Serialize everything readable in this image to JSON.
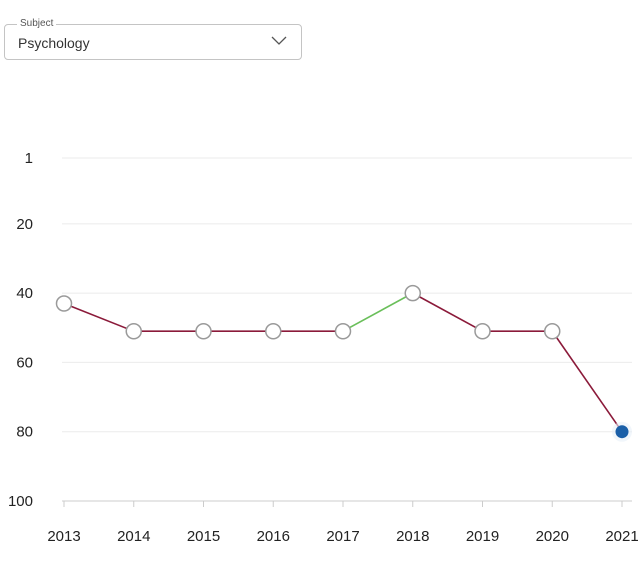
{
  "subject_select": {
    "legend": "Subject",
    "value": "Psychology",
    "icon": "chevron-down-icon"
  },
  "chart_data": {
    "type": "line",
    "title": "",
    "xlabel": "",
    "ylabel": "",
    "x": [
      "2013",
      "2014",
      "2015",
      "2016",
      "2017",
      "2018",
      "2019",
      "2020",
      "2021"
    ],
    "y_ticks": [
      "1",
      "20",
      "40",
      "60",
      "80",
      "100"
    ],
    "y_tick_values": [
      1,
      20,
      40,
      60,
      80,
      100
    ],
    "ylim": [
      1,
      100
    ],
    "y_reversed": true,
    "grid": true,
    "values": [
      43,
      51,
      51,
      51,
      51,
      40,
      51,
      51,
      80
    ],
    "colors": {
      "improve": "#6abf5a",
      "decline": "#8b1a3a",
      "marker_fill": "#ffffff",
      "marker_stroke": "#9a9a9a",
      "current_marker": "#1a5fa8",
      "grid": "#ebebeb",
      "axis": "#cccccc"
    }
  }
}
